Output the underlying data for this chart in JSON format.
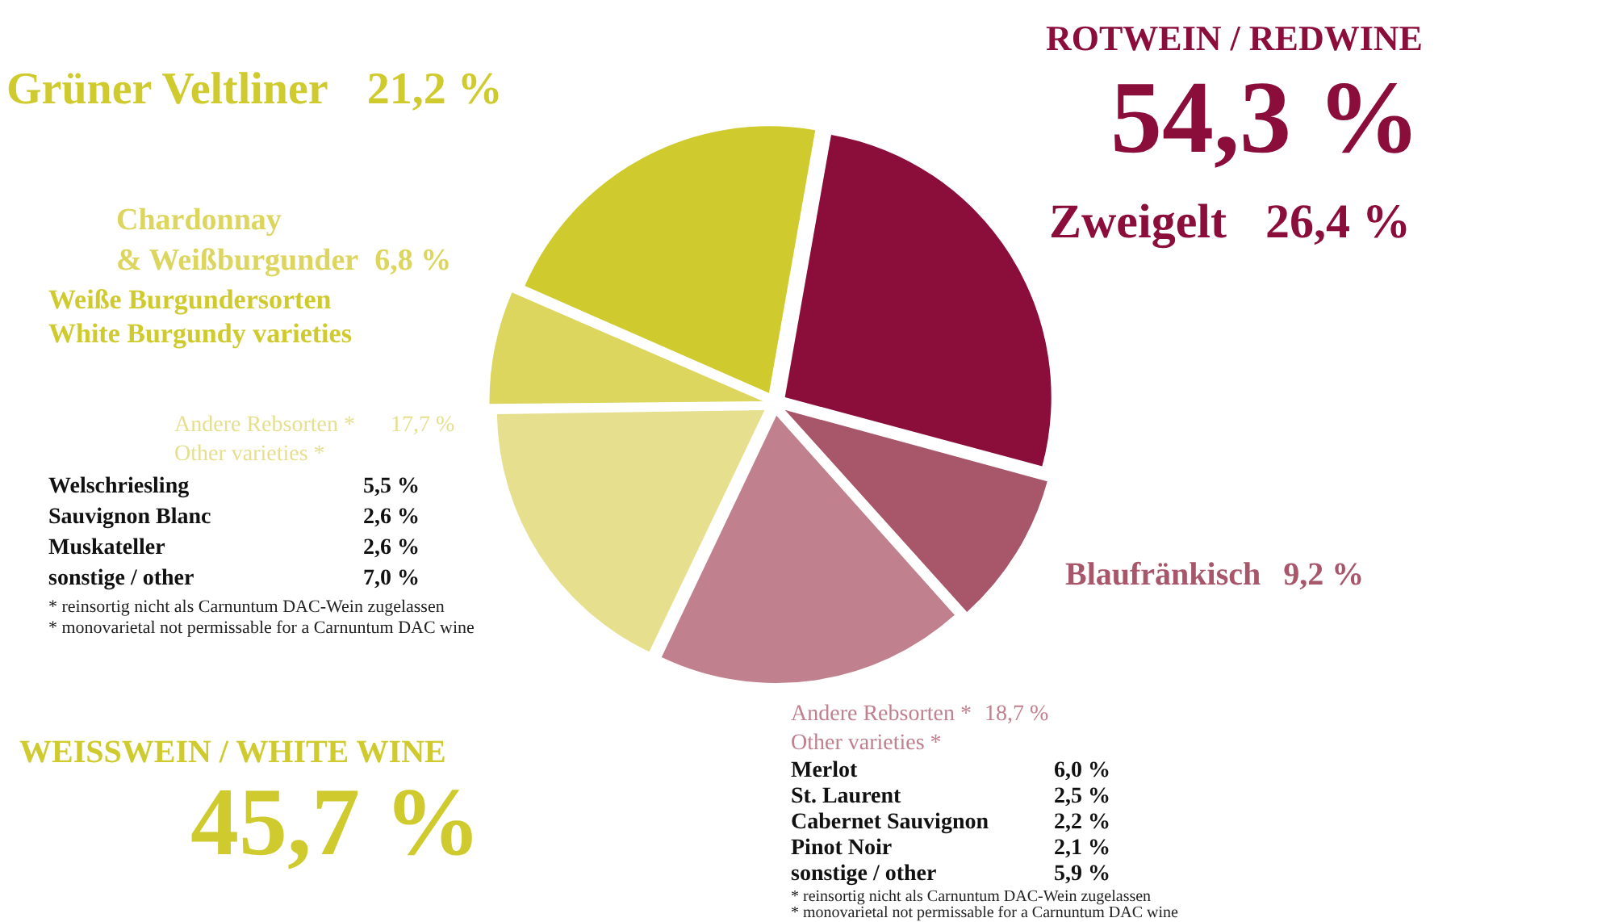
{
  "chart_data": {
    "type": "pie",
    "categories": [
      "Zweigelt",
      "Blaufränkisch",
      "Andere Rebsorten *\nOther varieties *",
      "Andere Rebsorten *\nOther varieties *",
      "Chardonnay\n& Weißburgunder",
      "Grüner Veltliner"
    ],
    "values": [
      26.4,
      9.2,
      18.7,
      17.7,
      6.8,
      21.2
    ],
    "value_labels": [
      "26,4 %",
      "9,2 %",
      "18,7 %",
      "17,7 %",
      "6,8 %",
      "21,2 %"
    ],
    "colors": [
      "#8b0e3a",
      "#a8566a",
      "#c0808e",
      "#e5df8e",
      "#dcd55e",
      "#cfcb2e"
    ],
    "legend": false,
    "annotations": [
      "ROTWEIN / REDWINE",
      "54,3 %",
      "WEISSWEIN / WHITE WINE",
      "45,7 %",
      "Weiße Burgundersorten",
      "White Burgundy varieties",
      "Welschriesling  5,5 %",
      "Sauvignon Blanc  2,6 %",
      "Muskateller  2,6 %",
      "sonstige / other  7,0 %",
      "* reinsortig nicht als Carnuntum DAC-Wein zugelassen",
      "* monovarietal not permissable for a Carnuntum DAC wine",
      "Merlot  6,0 %",
      "St. Laurent  2,5 %",
      "Cabernet Sauvignon  2,2 %",
      "Pinot Noir  2,1 %",
      "sonstige / other  5,9 %",
      "* reinsortig nicht als Carnuntum DAC-Wein zugelassen",
      "* monovarietal not permissable for a Carnuntum DAC wine"
    ]
  }
}
